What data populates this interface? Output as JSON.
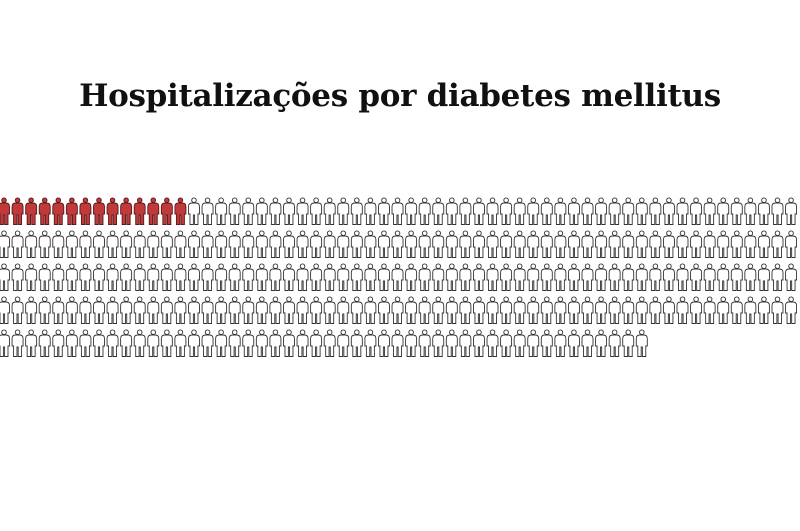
{
  "chart_data": {
    "type": "pictogram",
    "title": "Hospitalizações por diabetes mellitus",
    "total_icons": 284,
    "highlighted_icons": 14,
    "icons_per_row": 59,
    "colors": {
      "highlighted": "#c0393b",
      "highlighted_outline": "#5a1a1a",
      "default_fill": "#ffffff",
      "default_outline": "#333333"
    }
  }
}
